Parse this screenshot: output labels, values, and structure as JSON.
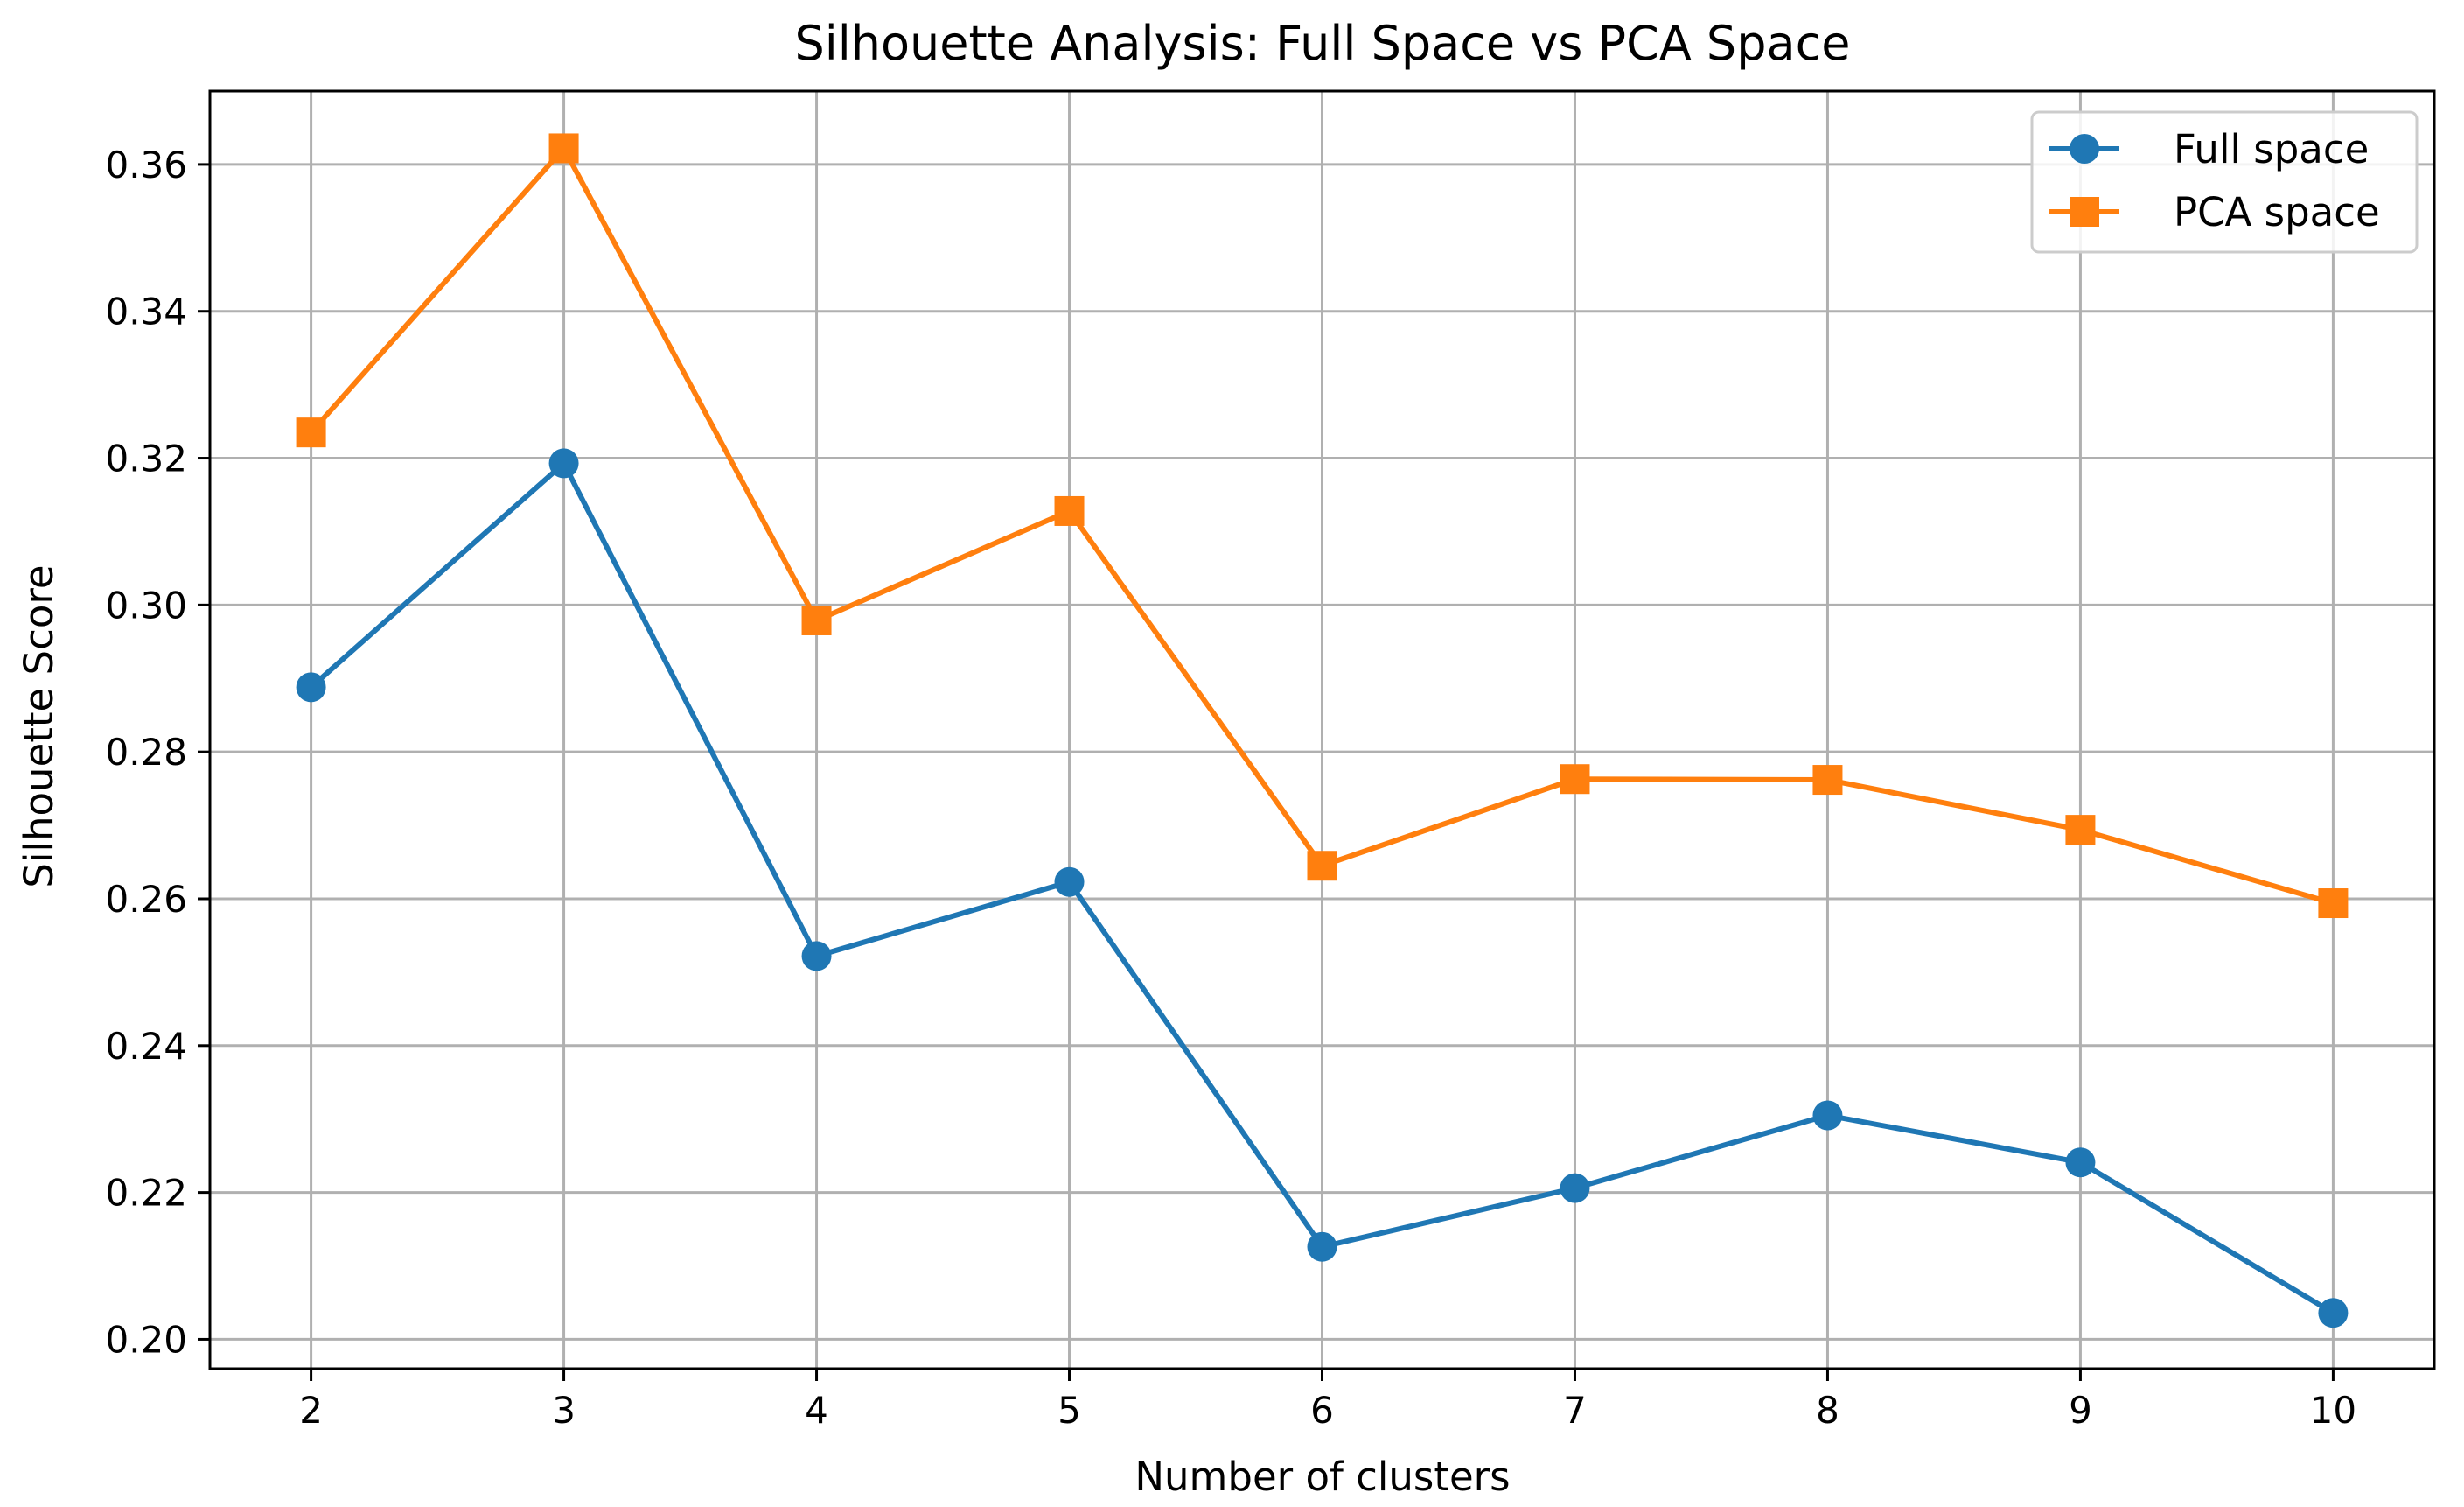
{
  "chart_data": {
    "type": "line",
    "title": "Silhouette Analysis: Full Space vs PCA Space",
    "xlabel": "Number of clusters",
    "ylabel": "Silhouette Score",
    "x": [
      2,
      3,
      4,
      5,
      6,
      7,
      8,
      9,
      10
    ],
    "xticks": [
      "2",
      "3",
      "4",
      "5",
      "6",
      "7",
      "8",
      "9",
      "10"
    ],
    "xlim": [
      1.6,
      10.4
    ],
    "ylim": [
      0.196,
      0.37
    ],
    "yticks": [
      "0.20",
      "0.22",
      "0.24",
      "0.26",
      "0.28",
      "0.30",
      "0.32",
      "0.34",
      "0.36"
    ],
    "grid": true,
    "legend_position": "top-right",
    "series": [
      {
        "name": "Full space",
        "marker": "circle",
        "color": "#1f77b4",
        "values": [
          0.2888,
          0.3193,
          0.2522,
          0.2623,
          0.2126,
          0.2206,
          0.2305,
          0.2241,
          0.2036
        ]
      },
      {
        "name": "PCA space",
        "marker": "square",
        "color": "#ff7f0e",
        "values": [
          0.3235,
          0.3622,
          0.2979,
          0.3128,
          0.2645,
          0.2763,
          0.2762,
          0.2694,
          0.2594
        ]
      }
    ]
  }
}
